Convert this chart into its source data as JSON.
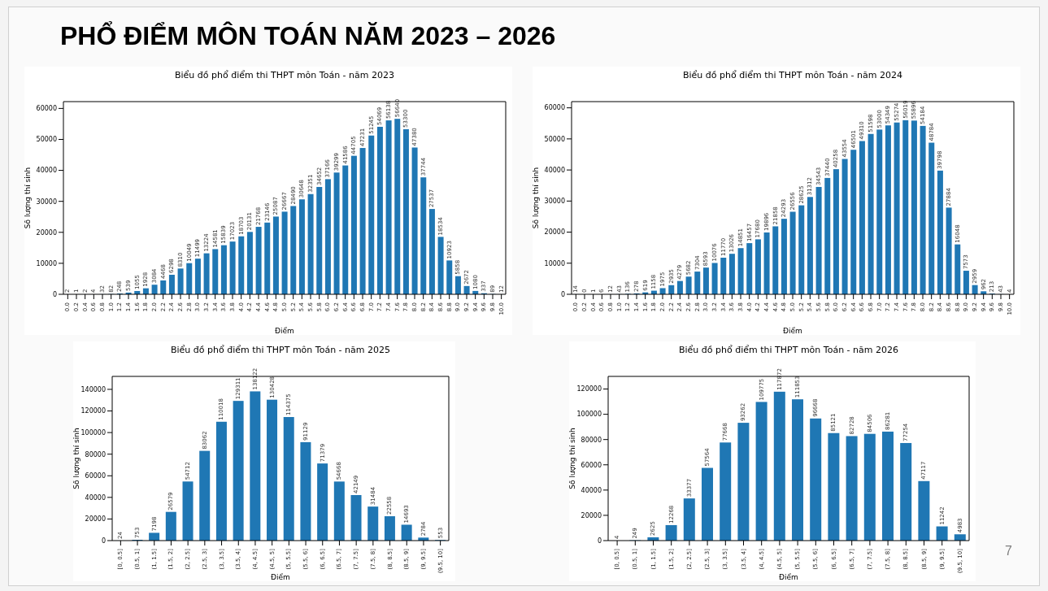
{
  "chart_data": [
    {
      "type": "other",
      "title": "PHỔ ĐIỂM MÔN TOÁN NĂM 2023 – 2026",
      "annotations": [
        "7"
      ]
    },
    {
      "type": "bar",
      "title": "Biểu đồ phổ điểm thi THPT môn Toán - năm 2023",
      "xlabel": "Điểm",
      "ylabel": "Số lượng thí sinh",
      "color": "#1f77b4",
      "data_labels": true,
      "ylim": [
        0,
        62200
      ],
      "yticks": [
        0,
        10000,
        20000,
        30000,
        40000,
        50000,
        60000
      ],
      "categories": [
        "0.0",
        "0.2",
        "0.4",
        "0.6",
        "0.8",
        "1.0",
        "1.2",
        "1.4",
        "1.6",
        "1.8",
        "2.0",
        "2.2",
        "2.4",
        "2.6",
        "2.8",
        "3.0",
        "3.2",
        "3.4",
        "3.6",
        "3.8",
        "4.0",
        "4.2",
        "4.4",
        "4.6",
        "4.8",
        "5.0",
        "5.2",
        "5.4",
        "5.6",
        "5.8",
        "6.0",
        "6.2",
        "6.4",
        "6.6",
        "6.8",
        "7.0",
        "7.2",
        "7.4",
        "7.6",
        "7.8",
        "8.0",
        "8.2",
        "8.4",
        "8.6",
        "8.8",
        "9.0",
        "9.2",
        "9.4",
        "9.6",
        "9.8",
        "10.0"
      ],
      "values": [
        2,
        1,
        2,
        4,
        32,
        82,
        248,
        539,
        1055,
        1928,
        3084,
        4468,
        6298,
        8310,
        10049,
        11499,
        13224,
        14581,
        15839,
        17023,
        18703,
        20131,
        21768,
        23146,
        25087,
        26667,
        28490,
        30648,
        32351,
        34652,
        37166,
        39299,
        41586,
        44705,
        47231,
        51245,
        54069,
        56138,
        56640,
        53300,
        47380,
        37744,
        27537,
        18534,
        10923,
        5858,
        2672,
        1080,
        337,
        89,
        12
      ]
    },
    {
      "type": "bar",
      "title": "Biểu đồ phổ điểm thi THPT môn Toán - năm 2024",
      "xlabel": "Điểm",
      "ylabel": "Số lượng thí sinh",
      "color": "#1f77b4",
      "data_labels": true,
      "ylim": [
        0,
        62000
      ],
      "yticks": [
        0,
        10000,
        20000,
        30000,
        40000,
        50000,
        60000
      ],
      "categories": [
        "0.0",
        "0.2",
        "0.4",
        "0.6",
        "0.8",
        "1.0",
        "1.2",
        "1.4",
        "1.6",
        "1.8",
        "2.0",
        "2.2",
        "2.4",
        "2.6",
        "2.8",
        "3.0",
        "3.2",
        "3.4",
        "3.6",
        "3.8",
        "4.0",
        "4.2",
        "4.4",
        "4.6",
        "4.8",
        "5.0",
        "5.2",
        "5.4",
        "5.6",
        "5.8",
        "6.0",
        "6.2",
        "6.4",
        "6.6",
        "6.8",
        "7.0",
        "7.2",
        "7.4",
        "7.6",
        "7.8",
        "8.0",
        "8.2",
        "8.4",
        "8.6",
        "8.8",
        "9.0",
        "9.2",
        "9.4",
        "9.6",
        "9.8",
        "10.0"
      ],
      "values": [
        14,
        0,
        1,
        6,
        12,
        43,
        136,
        278,
        619,
        1158,
        1975,
        2935,
        4279,
        5682,
        7304,
        8593,
        10076,
        11770,
        13026,
        14851,
        16457,
        17680,
        19896,
        21858,
        24293,
        26556,
        28625,
        31312,
        34543,
        37440,
        40258,
        43554,
        46501,
        49310,
        51598,
        53000,
        54349,
        55274,
        56019,
        55896,
        54184,
        48784,
        39798,
        27884,
        16048,
        7573,
        2959,
        962,
        213,
        43,
        4
      ]
    },
    {
      "type": "bar",
      "title": "Biểu đồ phổ điểm thi THPT môn Toán - năm 2025",
      "xlabel": "Điểm",
      "ylabel": "Số lượng thí sinh",
      "color": "#1f77b4",
      "data_labels": true,
      "ylim": [
        0,
        152000
      ],
      "yticks": [
        0,
        20000,
        40000,
        60000,
        80000,
        100000,
        120000,
        140000
      ],
      "categories": [
        "[0, 0.5]",
        "(0.5, 1]",
        "(1, 1.5]",
        "(1.5, 2]",
        "(2, 2.5]",
        "(2.5, 3]",
        "(3, 3.5]",
        "(3.5, 4]",
        "(4, 4.5]",
        "(4.5, 5]",
        "(5, 5.5]",
        "(5.5, 6]",
        "(6, 6.5]",
        "(6.5, 7]",
        "(7, 7.5]",
        "(7.5, 8]",
        "(8, 8.5]",
        "(8.5, 9]",
        "(9, 9.5]",
        "(9.5, 10]"
      ],
      "values": [
        24,
        753,
        7198,
        26579,
        54712,
        83062,
        110018,
        129311,
        138122,
        130428,
        114375,
        91129,
        71379,
        54668,
        42149,
        31484,
        22558,
        14693,
        2784,
        553
      ]
    },
    {
      "type": "bar",
      "title": "Biểu đồ phổ điểm thi THPT môn Toán - năm 2026",
      "xlabel": "Điểm",
      "ylabel": "Số lượng thí sinh",
      "color": "#1f77b4",
      "data_labels": true,
      "ylim": [
        0,
        130000
      ],
      "yticks": [
        0,
        20000,
        40000,
        60000,
        80000,
        100000,
        120000
      ],
      "categories": [
        "[0, 0.5]",
        "(0.5, 1]",
        "(1, 1.5]",
        "(1.5, 2]",
        "(2, 2.5]",
        "(2.5, 3]",
        "(3, 3.5]",
        "(3.5, 4]",
        "(4, 4.5]",
        "(4.5, 5]",
        "(5, 5.5]",
        "(5.5, 6]",
        "(6, 6.5]",
        "(6.5, 7]",
        "(7, 7.5]",
        "(7.5, 8]",
        "(8, 8.5]",
        "(8.5, 9]",
        "(9, 9.5]",
        "(9.5, 10]"
      ],
      "values": [
        4,
        249,
        2625,
        12268,
        33377,
        57564,
        77668,
        93262,
        109775,
        117872,
        111853,
        96668,
        85121,
        82728,
        84506,
        86281,
        77254,
        47117,
        11242,
        4983
      ]
    }
  ]
}
